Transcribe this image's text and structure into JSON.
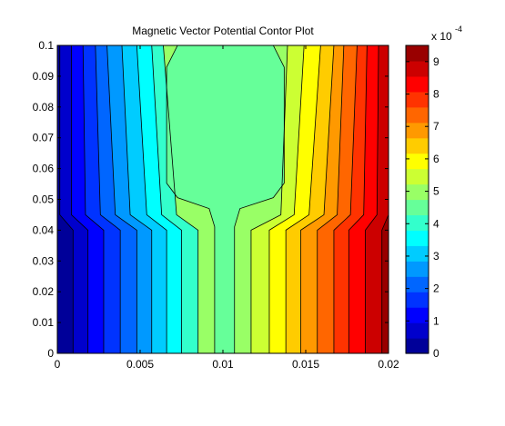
{
  "chart_data": {
    "type": "heatmap",
    "subtype": "filled-contour",
    "title": "Magnetic Vector Potential Contor Plot",
    "xlabel": "",
    "ylabel": "",
    "xlim": [
      0,
      0.02
    ],
    "ylim": [
      0,
      0.1
    ],
    "x_ticks": [
      "0",
      "0.005",
      "0.01",
      "0.015",
      "0.02"
    ],
    "y_ticks": [
      "0",
      "0.01",
      "0.02",
      "0.03",
      "0.04",
      "0.05",
      "0.06",
      "0.07",
      "0.08",
      "0.09",
      "0.1"
    ],
    "colormap": "jet",
    "colorbar": {
      "range": [
        0,
        0.00095
      ],
      "multiplier": "x 10",
      "exponent": "-4",
      "ticks": [
        "0",
        "1",
        "2",
        "3",
        "4",
        "5",
        "6",
        "7",
        "8",
        "9"
      ]
    },
    "contour_levels": 20,
    "band_width": 4.75e-05,
    "contours_left": [
      {
        "x_top": 0.00015,
        "x_mid": 0.00015,
        "x_bot": 0.00095,
        "level_index": 0
      },
      {
        "x_top": 0.00085,
        "x_mid": 0.00085,
        "x_bot": 0.00185,
        "level_index": 1
      },
      {
        "x_top": 0.00155,
        "x_mid": 0.0017,
        "x_bot": 0.0028,
        "level_index": 2
      },
      {
        "x_top": 0.0023,
        "x_mid": 0.0026,
        "x_bot": 0.0038,
        "level_index": 3
      },
      {
        "x_top": 0.003,
        "x_mid": 0.0035,
        "x_bot": 0.0048,
        "level_index": 4
      },
      {
        "x_top": 0.0039,
        "x_mid": 0.0044,
        "x_bot": 0.0057,
        "level_index": 5
      },
      {
        "x_top": 0.0048,
        "x_mid": 0.0054,
        "x_bot": 0.0066,
        "level_index": 6
      },
      {
        "x_top": 0.0057,
        "x_mid": 0.0063,
        "x_bot": 0.0075,
        "level_index": 7
      },
      {
        "x_top": 0.0064,
        "x_mid": 0.0072,
        "x_bot": 0.0085,
        "level_index": 8
      }
    ],
    "contours_right": [
      {
        "x_top": 0.0139,
        "x_mid": 0.0135,
        "x_bot": 0.0117,
        "level_index": 11
      },
      {
        "x_top": 0.0149,
        "x_mid": 0.0143,
        "x_bot": 0.0128,
        "level_index": 12
      },
      {
        "x_top": 0.0159,
        "x_mid": 0.0152,
        "x_bot": 0.0138,
        "level_index": 13
      },
      {
        "x_top": 0.0167,
        "x_mid": 0.0161,
        "x_bot": 0.0147,
        "level_index": 14
      },
      {
        "x_top": 0.0173,
        "x_mid": 0.0169,
        "x_bot": 0.0157,
        "level_index": 15
      },
      {
        "x_top": 0.0181,
        "x_mid": 0.0177,
        "x_bot": 0.0167,
        "level_index": 16
      },
      {
        "x_top": 0.0187,
        "x_mid": 0.0185,
        "x_bot": 0.0176,
        "level_index": 17
      },
      {
        "x_top": 0.0194,
        "x_mid": 0.0193,
        "x_bot": 0.0186,
        "level_index": 18
      },
      {
        "x_top": 0.02,
        "x_mid": 0.02,
        "x_bot": 0.0196,
        "level_index": 19
      }
    ],
    "central_region": {
      "level_index": 9,
      "top_y": 0.1,
      "neck_y": 0.047,
      "neck_x_left": 0.0095,
      "neck_x_right": 0.0107,
      "body_x_left": 0.0066,
      "body_x_right": 0.0137
    }
  }
}
